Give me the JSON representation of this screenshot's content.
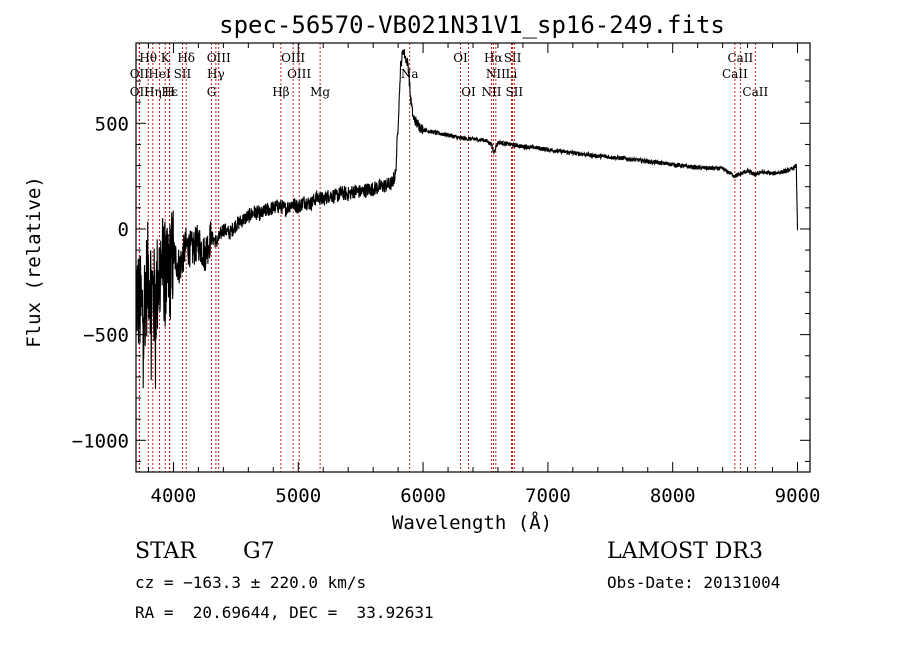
{
  "chart_data": {
    "type": "line",
    "title": "spec-56570-VB021N31V1_sp16-249.fits",
    "xlabel": "Wavelength (Å)",
    "ylabel": "Flux (relative)",
    "xlim": [
      3700,
      9100
    ],
    "ylim": [
      -1150,
      880
    ],
    "x_ticks": [
      4000,
      5000,
      6000,
      7000,
      8000,
      9000
    ],
    "x_tick_labels": [
      "4000",
      "5000",
      "6000",
      "7000",
      "8000",
      "9000"
    ],
    "x_minor_step": 200,
    "y_ticks": [
      -1000,
      -500,
      0,
      500
    ],
    "y_tick_labels": [
      "−1000",
      "−500",
      "0",
      "500"
    ],
    "y_minor_step": 100,
    "series": [
      {
        "name": "flux",
        "x": [
          3700,
          3750,
          3800,
          3850,
          3900,
          3950,
          4000,
          4050,
          4100,
          4150,
          4200,
          4250,
          4300,
          4350,
          4400,
          4450,
          4500,
          4550,
          4600,
          4650,
          4700,
          4750,
          4800,
          4850,
          4900,
          4950,
          5000,
          5050,
          5100,
          5150,
          5200,
          5250,
          5300,
          5350,
          5400,
          5450,
          5500,
          5550,
          5600,
          5650,
          5700,
          5750,
          5780,
          5800,
          5820,
          5840,
          5860,
          5880,
          5900,
          5920,
          5950,
          6000,
          6100,
          6200,
          6300,
          6400,
          6500,
          6550,
          6563,
          6600,
          6700,
          6800,
          6900,
          7000,
          7200,
          7400,
          7600,
          7800,
          8000,
          8200,
          8400,
          8498,
          8542,
          8600,
          8662,
          8700,
          8800,
          8900,
          8960,
          8990,
          9000
        ],
        "values": [
          -300,
          -400,
          -200,
          -350,
          -150,
          -250,
          -120,
          -180,
          -80,
          -100,
          -60,
          -120,
          -40,
          -60,
          0,
          -20,
          20,
          40,
          60,
          80,
          70,
          90,
          100,
          110,
          95,
          120,
          105,
          130,
          120,
          150,
          140,
          160,
          155,
          170,
          165,
          180,
          175,
          185,
          190,
          200,
          205,
          215,
          260,
          500,
          770,
          850,
          810,
          780,
          620,
          530,
          500,
          470,
          455,
          445,
          430,
          425,
          420,
          400,
          360,
          410,
          400,
          390,
          385,
          375,
          360,
          345,
          335,
          320,
          305,
          290,
          285,
          250,
          260,
          275,
          255,
          270,
          262,
          272,
          285,
          300,
          0
        ]
      }
    ],
    "line_markers": [
      {
        "label": "Hθ",
        "wave": 3798,
        "row": 1
      },
      {
        "label": "K",
        "wave": 3934,
        "row": 1
      },
      {
        "label": "Hδ",
        "wave": 4102,
        "row": 1
      },
      {
        "label": "OIII",
        "wave": 4363,
        "row": 1
      },
      {
        "label": "OIII",
        "wave": 4959,
        "row": 1
      },
      {
        "label": "OI",
        "wave": 6300,
        "row": 1
      },
      {
        "label": "Hα",
        "wave": 6563,
        "row": 1
      },
      {
        "label": "SII",
        "wave": 6717,
        "row": 1
      },
      {
        "label": "CaII",
        "wave": 8542,
        "row": 1
      },
      {
        "label": "OII",
        "wave": 3727,
        "row": 2
      },
      {
        "label": "HeI",
        "wave": 3889,
        "row": 2
      },
      {
        "label": "SII",
        "wave": 4072,
        "row": 2
      },
      {
        "label": "Hγ",
        "wave": 4340,
        "row": 2
      },
      {
        "label": "OIII",
        "wave": 5007,
        "row": 2
      },
      {
        "label": "Na",
        "wave": 5893,
        "row": 2
      },
      {
        "label": "NII",
        "wave": 6583,
        "row": 2
      },
      {
        "label": "Li",
        "wave": 6708,
        "row": 2
      },
      {
        "label": "CaII",
        "wave": 8498,
        "row": 2
      },
      {
        "label": "OII",
        "wave": 3727,
        "row": 3
      },
      {
        "label": "Hε",
        "wave": 3970,
        "row": 3
      },
      {
        "label": "Hη",
        "wave": 3835,
        "row": 3
      },
      {
        "label": "H",
        "wave": 3968,
        "row": 3
      },
      {
        "label": "G",
        "wave": 4305,
        "row": 3
      },
      {
        "label": "Hβ",
        "wave": 4861,
        "row": 3
      },
      {
        "label": "Mg",
        "wave": 5175,
        "row": 3
      },
      {
        "label": "OI",
        "wave": 6364,
        "row": 3
      },
      {
        "label": "NII",
        "wave": 6548,
        "row": 3
      },
      {
        "label": "SII",
        "wave": 6731,
        "row": 3
      },
      {
        "label": "CaII",
        "wave": 8662,
        "row": 3
      }
    ]
  },
  "info": {
    "class": "STAR",
    "subclass": "G7",
    "survey": "LAMOST DR3",
    "redshift": "cz = −163.3 ± 220.0 km/s",
    "obs_date": "Obs-Date: 20131004",
    "coords": "RA =  20.69644, DEC =  33.92631"
  }
}
